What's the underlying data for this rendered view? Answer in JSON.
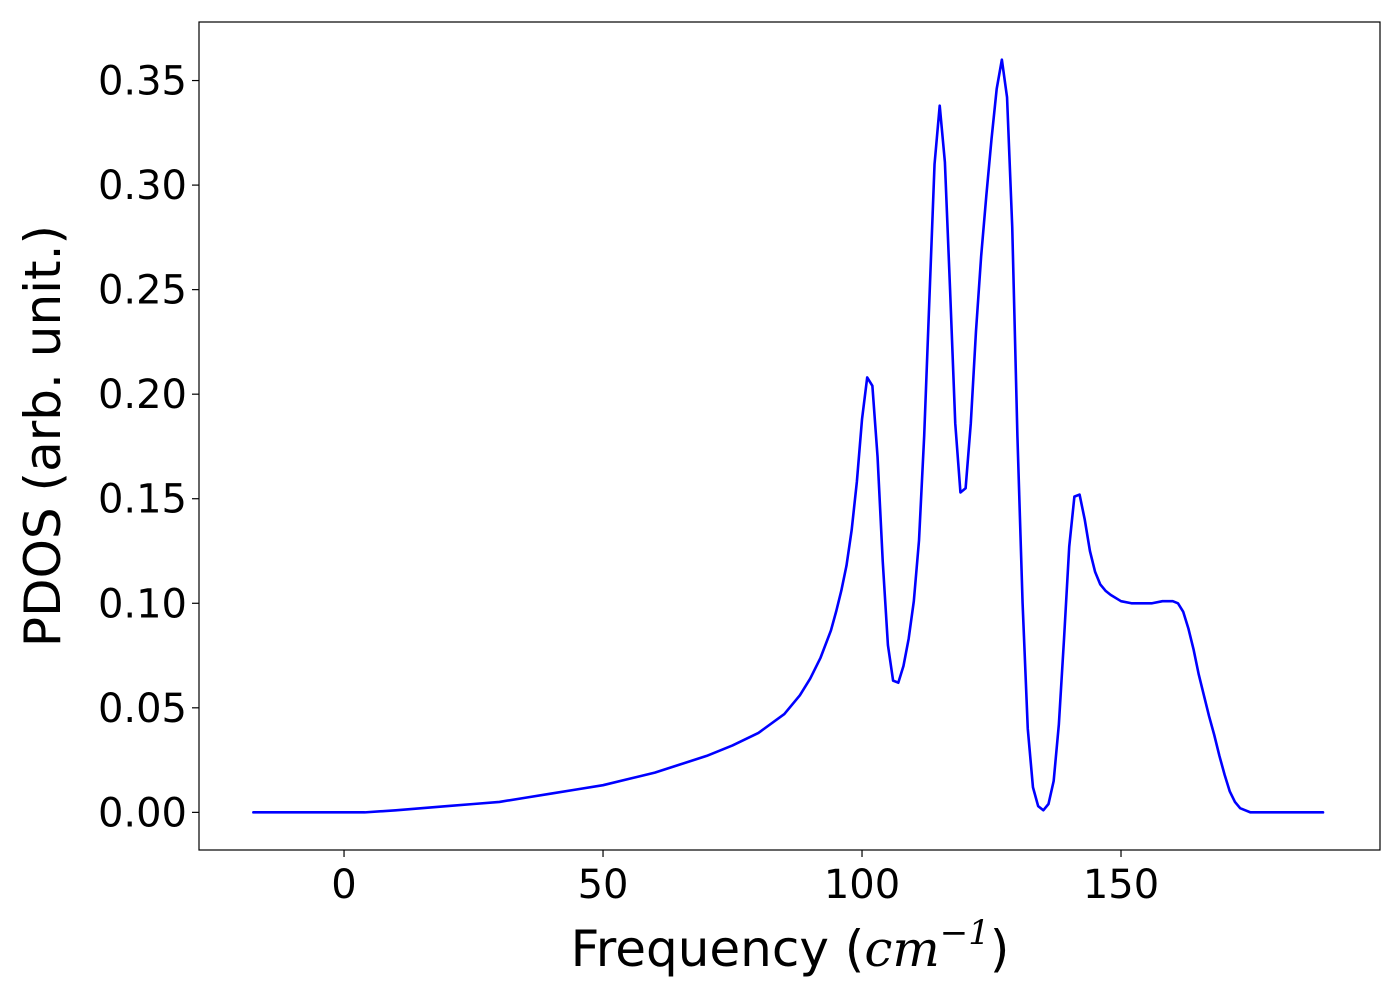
{
  "chart_data": {
    "type": "line",
    "title": "",
    "xlabel": "Frequency (cm^-1)",
    "xlabel_parts": {
      "prefix": "Frequency (",
      "math": "cm",
      "sup": "−1",
      "suffix": ")"
    },
    "ylabel": "PDOS (arb. unit.)",
    "xlim": [
      -28,
      200
    ],
    "ylim": [
      -0.018,
      0.378
    ],
    "xticks": [
      0,
      50,
      100,
      150
    ],
    "xtick_labels": [
      "0",
      "50",
      "100",
      "150"
    ],
    "yticks": [
      0.0,
      0.05,
      0.1,
      0.15,
      0.2,
      0.25,
      0.3,
      0.35
    ],
    "ytick_labels": [
      "0.00",
      "0.05",
      "0.10",
      "0.15",
      "0.20",
      "0.25",
      "0.30",
      "0.35"
    ],
    "grid": false,
    "legend": "none",
    "series": [
      {
        "color": "#0000ff",
        "x": [
          -17.5,
          0,
          4,
          10,
          15,
          20,
          25,
          30,
          35,
          40,
          45,
          50,
          55,
          60,
          65,
          70,
          75,
          80,
          85,
          88,
          90,
          92,
          94,
          95,
          96,
          97,
          98,
          99,
          100,
          101,
          102,
          103,
          104,
          105,
          106,
          107,
          108,
          109,
          110,
          111,
          112,
          113,
          114,
          115,
          116,
          117,
          118,
          119,
          120,
          121,
          122,
          123,
          124,
          125,
          126,
          127,
          128,
          129,
          130,
          131,
          132,
          133,
          134,
          135,
          136,
          137,
          138,
          139,
          140,
          141,
          142,
          143,
          144,
          145,
          146,
          147,
          148,
          150,
          152,
          154,
          156,
          158,
          159,
          160,
          161,
          162,
          163,
          164,
          165,
          166,
          167,
          168,
          169,
          170,
          171,
          172,
          173,
          174,
          175,
          180,
          185,
          189
        ],
        "y": [
          0.0,
          0.0,
          0.0,
          0.001,
          0.002,
          0.003,
          0.004,
          0.005,
          0.007,
          0.009,
          0.011,
          0.013,
          0.016,
          0.019,
          0.023,
          0.027,
          0.032,
          0.038,
          0.047,
          0.056,
          0.064,
          0.074,
          0.087,
          0.096,
          0.106,
          0.118,
          0.135,
          0.158,
          0.188,
          0.208,
          0.204,
          0.17,
          0.12,
          0.08,
          0.063,
          0.062,
          0.07,
          0.083,
          0.101,
          0.13,
          0.18,
          0.245,
          0.31,
          0.338,
          0.311,
          0.25,
          0.186,
          0.153,
          0.155,
          0.186,
          0.23,
          0.266,
          0.295,
          0.322,
          0.346,
          0.36,
          0.342,
          0.28,
          0.18,
          0.1,
          0.04,
          0.012,
          0.003,
          0.001,
          0.004,
          0.015,
          0.042,
          0.083,
          0.127,
          0.151,
          0.152,
          0.14,
          0.125,
          0.115,
          0.109,
          0.106,
          0.104,
          0.101,
          0.1,
          0.1,
          0.1,
          0.101,
          0.101,
          0.101,
          0.1,
          0.096,
          0.088,
          0.078,
          0.066,
          0.056,
          0.046,
          0.037,
          0.027,
          0.018,
          0.01,
          0.005,
          0.002,
          0.001,
          0.0,
          0.0,
          0.0,
          0.0
        ]
      }
    ]
  }
}
